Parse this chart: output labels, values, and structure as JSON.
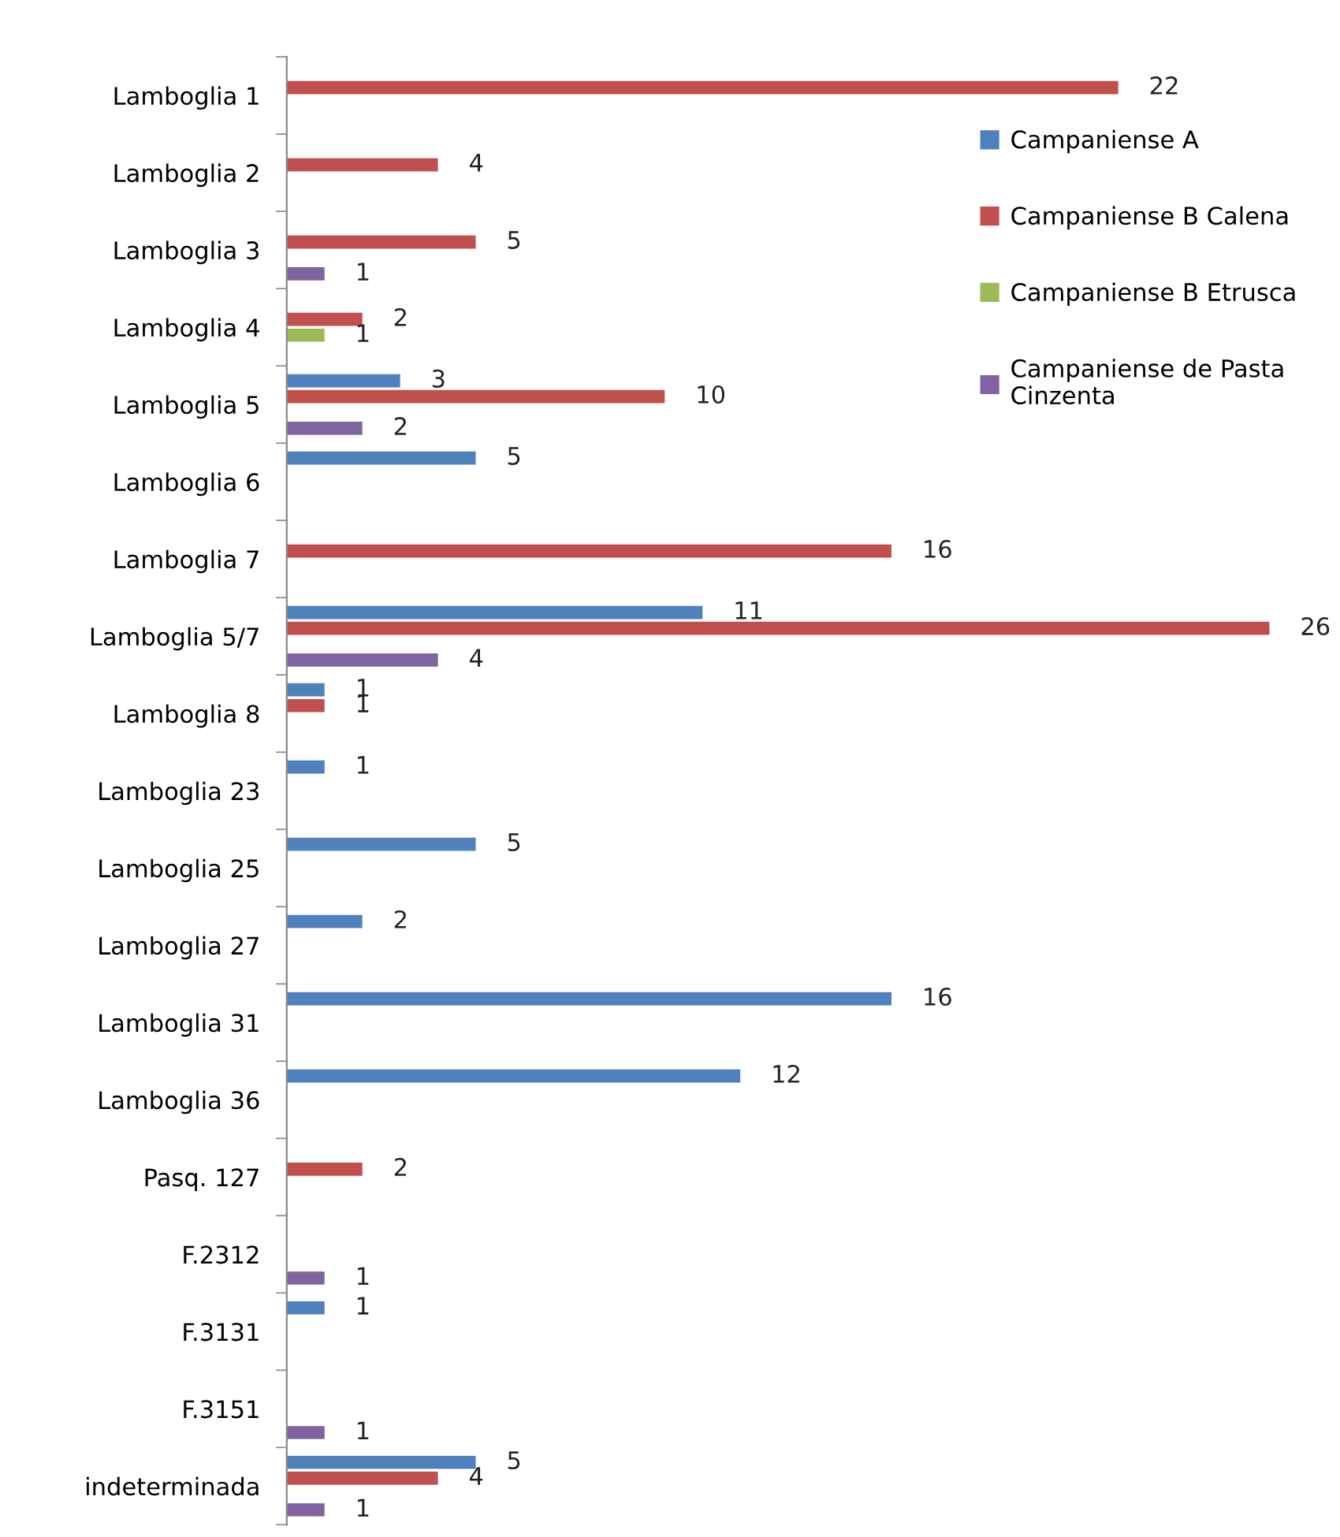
{
  "chart_data": {
    "type": "bar",
    "orientation": "horizontal",
    "categories": [
      "Lamboglia 1",
      "Lamboglia 2",
      "Lamboglia 3",
      "Lamboglia 4",
      "Lamboglia 5",
      "Lamboglia 6",
      "Lamboglia 7",
      "Lamboglia 5/7",
      "Lamboglia 8",
      "Lamboglia 23",
      "Lamboglia 25",
      "Lamboglia 27",
      "Lamboglia 31",
      "Lamboglia 36",
      "Pasq. 127",
      "F.2312",
      "F.3131",
      "F.3151",
      "indeterminada"
    ],
    "series": [
      {
        "name": "Campaniense A",
        "color": "#4f81bd",
        "values": [
          null,
          null,
          null,
          null,
          3,
          5,
          null,
          11,
          1,
          1,
          5,
          2,
          16,
          12,
          null,
          null,
          1,
          null,
          5
        ]
      },
      {
        "name": "Campaniense B Calena",
        "color": "#c0504d",
        "values": [
          22,
          4,
          5,
          2,
          10,
          null,
          16,
          26,
          1,
          null,
          null,
          null,
          null,
          null,
          2,
          null,
          null,
          null,
          4
        ]
      },
      {
        "name": "Campaniense B Etrusca",
        "color": "#9bbb59",
        "values": [
          null,
          null,
          null,
          1,
          null,
          null,
          null,
          null,
          null,
          null,
          null,
          null,
          null,
          null,
          null,
          null,
          null,
          null,
          null
        ]
      },
      {
        "name": "Campaniense de Pasta Cinzenta",
        "color": "#8064a2",
        "values": [
          null,
          null,
          1,
          null,
          2,
          null,
          null,
          4,
          null,
          null,
          null,
          null,
          null,
          null,
          null,
          1,
          null,
          1,
          1
        ]
      }
    ],
    "data_labels": true,
    "legend": "top right",
    "grid": false
  }
}
